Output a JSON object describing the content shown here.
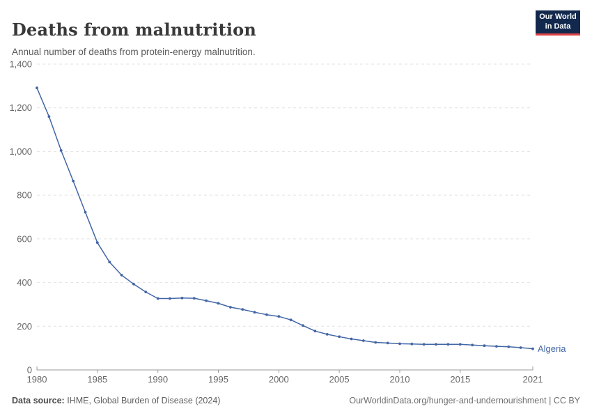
{
  "header": {
    "title": "Deaths from malnutrition",
    "subtitle": "Annual number of deaths from protein-energy malnutrition.",
    "logo": {
      "line1": "Our World",
      "line2": "in Data",
      "bg_color": "#12294d",
      "accent_color": "#e04245"
    }
  },
  "chart_data": {
    "type": "line",
    "title": "Deaths from malnutrition",
    "xlabel": "",
    "ylabel": "",
    "grid": "horizontal-dashed",
    "legend_position": "end-of-line-label",
    "xlim": [
      1980,
      2021
    ],
    "ylim": [
      0,
      1400
    ],
    "x_ticks": [
      1980,
      1985,
      1990,
      1995,
      2000,
      2005,
      2010,
      2015,
      2021
    ],
    "y_ticks": [
      0,
      200,
      400,
      600,
      800,
      1000,
      1200,
      1400
    ],
    "y_tick_labels": [
      "0",
      "200",
      "400",
      "600",
      "800",
      "1,000",
      "1,200",
      "1,400"
    ],
    "x": [
      1980,
      1981,
      1982,
      1983,
      1984,
      1985,
      1986,
      1987,
      1988,
      1989,
      1990,
      1991,
      1992,
      1993,
      1994,
      1995,
      1996,
      1997,
      1998,
      1999,
      2000,
      2001,
      2002,
      2003,
      2004,
      2005,
      2006,
      2007,
      2008,
      2009,
      2010,
      2011,
      2012,
      2013,
      2014,
      2015,
      2016,
      2017,
      2018,
      2019,
      2020,
      2021
    ],
    "series": [
      {
        "name": "Algeria",
        "color": "#4266a5",
        "values": [
          1291,
          1160,
          1005,
          865,
          722,
          583,
          494,
          434,
          393,
          357,
          327,
          327,
          329,
          328,
          317,
          305,
          287,
          277,
          264,
          253,
          245,
          229,
          203,
          178,
          163,
          152,
          142,
          134,
          126,
          123,
          120,
          119,
          117,
          117,
          117,
          117,
          114,
          111,
          108,
          106,
          102,
          97
        ]
      }
    ]
  },
  "footer": {
    "source_label": "Data source:",
    "source_text": " IHME, Global Burden of Disease (2024)",
    "link_text": "OurWorldinData.org/hunger-and-undernourishment | CC BY"
  },
  "colors": {
    "line": "#4266a5",
    "grid": "#e2e2e2",
    "axis": "#9a9a9a",
    "tick_label": "#666666",
    "title": "#393939",
    "subtitle": "#595959"
  }
}
